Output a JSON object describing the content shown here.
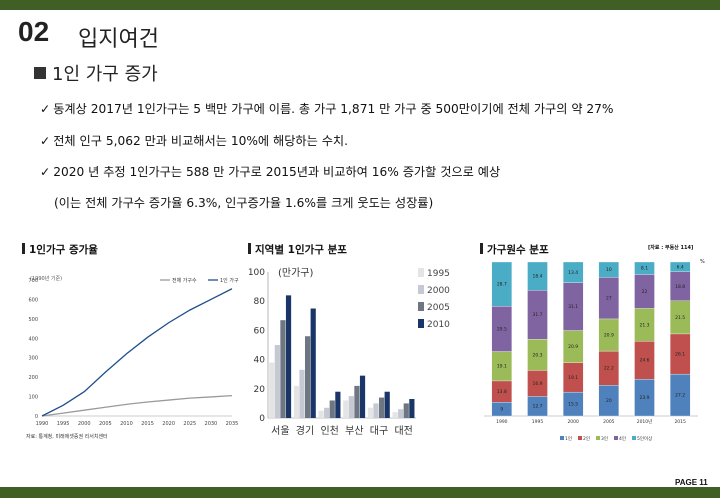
{
  "header": {
    "section_num": "02",
    "section_title": "입지여건",
    "topic": "1인 가구 증가"
  },
  "bullets": [
    "동계상 2017년 1인가구는 5 백만 가구에 이름. 총 가구 1,871 만 가구 중 500만이기에 전체 가구의 약 27%",
    "전체 인구 5,062 만과 비교해서는 10%에 해당하는 수치.",
    "2020 년 추정 1인가구는 588 만 가구로 2015년과 비교하여 16% 증가할 것으로 예상"
  ],
  "bullet_mark": "✓",
  "note": "(이는 전체 가구수 증가율 6.3%, 인구증가율 1.6%를 크게 웃도는 성장률)",
  "panel1": {
    "title": "1인가구 증가율",
    "unit": "(1990년 기준)",
    "source": "자료: 통계청, 미래에셋증권 리서치센터"
  },
  "panel2": {
    "title": "지역별 1인가구 분포"
  },
  "panel3": {
    "title": "가구원수 분포",
    "source": "[자료 : 부동산 114]",
    "pct": "%"
  },
  "footer": {
    "page": "PAGE 11"
  },
  "colors": {
    "accent": "#3f5f25"
  },
  "chart_data": [
    {
      "type": "line",
      "title": "1인가구 증가율",
      "x": [
        1990,
        1995,
        2000,
        2005,
        2010,
        2015,
        2020,
        2025,
        2030,
        2035
      ],
      "ylim": [
        0,
        700
      ],
      "yticks": [
        0,
        100,
        200,
        300,
        400,
        500,
        600,
        700
      ],
      "legend_position": "top-right",
      "series": [
        {
          "name": "전체 가구수",
          "color": "#9a9a9a",
          "values": [
            0,
            15,
            30,
            45,
            60,
            72,
            82,
            92,
            98,
            105
          ]
        },
        {
          "name": "1인 가구",
          "color": "#1f4e8c",
          "values": [
            0,
            55,
            125,
            225,
            320,
            405,
            480,
            545,
            600,
            655
          ]
        }
      ]
    },
    {
      "type": "bar",
      "title": "지역별 1인가구 분포",
      "ylabel": "(만가구)",
      "ylim": [
        0,
        100
      ],
      "yticks": [
        0,
        20,
        40,
        60,
        80,
        100
      ],
      "categories": [
        "서울",
        "경기",
        "인천",
        "부산",
        "대구",
        "대전"
      ],
      "legend_position": "right",
      "series": [
        {
          "name": "1995",
          "color": "#e4e4e4",
          "values": [
            38,
            22,
            5,
            12,
            7,
            4
          ]
        },
        {
          "name": "2000",
          "color": "#c4c9d4",
          "values": [
            50,
            33,
            7,
            15,
            10,
            6
          ]
        },
        {
          "name": "2005",
          "color": "#6d7681",
          "values": [
            67,
            56,
            12,
            22,
            14,
            10
          ]
        },
        {
          "name": "2010",
          "color": "#1a3668",
          "values": [
            84,
            75,
            18,
            29,
            18,
            13
          ]
        }
      ]
    },
    {
      "type": "bar",
      "stacked": true,
      "title": "가구원수 분포",
      "categories": [
        "1990",
        "1995",
        "2000",
        "2005",
        "2010년",
        "2015"
      ],
      "legend_position": "bottom",
      "series": [
        {
          "name": "1인",
          "color": "#4f81bd",
          "values": [
            9,
            12.7,
            15.5,
            20,
            23.9,
            27.2
          ]
        },
        {
          "name": "2인",
          "color": "#c0504d",
          "values": [
            13.8,
            16.9,
            19.1,
            22.2,
            24.6,
            26.1
          ]
        },
        {
          "name": "3인",
          "color": "#9bbb59",
          "values": [
            19.1,
            20.3,
            20.9,
            20.9,
            21.3,
            21.5
          ]
        },
        {
          "name": "4인",
          "color": "#8064a2",
          "values": [
            29.5,
            31.7,
            31.1,
            27,
            22,
            18.8
          ]
        },
        {
          "name": "5인이상",
          "color": "#4bacc6",
          "values": [
            28.7,
            18.4,
            13.4,
            10,
            8.1,
            6.4
          ]
        }
      ]
    }
  ]
}
